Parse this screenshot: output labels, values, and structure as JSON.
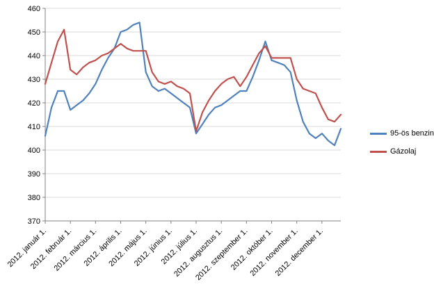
{
  "chart_data": {
    "type": "line",
    "title": "",
    "xlabel": "",
    "ylabel": "",
    "ylim": [
      370,
      460
    ],
    "ytick_step": 10,
    "grid": "horizontal",
    "legend_position": "right",
    "x_tick_labels": [
      "2012. január 1.",
      "2012. február 1.",
      "2012. március 1.",
      "2012. április 1.",
      "2012. május 1.",
      "2012. június 1.",
      "2012. július 1.",
      "2012. augusztus 1.",
      "2012. szeptember 1.",
      "2012. október 1.",
      "2012. november 1.",
      "2012. december 1."
    ],
    "points_per_month": 4,
    "series": [
      {
        "name": "95-ös benzin",
        "color": "#4F81BD",
        "values": [
          406,
          418,
          425,
          425,
          417,
          419,
          421,
          424,
          428,
          434,
          439,
          443,
          450,
          451,
          453,
          454,
          433,
          427,
          425,
          426,
          424,
          422,
          420,
          418,
          407,
          411,
          415,
          418,
          419,
          421,
          423,
          425,
          425,
          431,
          438,
          446,
          438,
          437,
          436,
          433,
          421,
          412,
          407,
          405,
          407,
          404,
          402,
          409
        ]
      },
      {
        "name": "Gázolaj",
        "color": "#C0504D",
        "values": [
          428,
          437,
          446,
          451,
          434,
          432,
          435,
          437,
          438,
          440,
          441,
          443,
          445,
          443,
          442,
          442,
          442,
          433,
          429,
          428,
          429,
          427,
          426,
          424,
          408,
          416,
          421,
          425,
          428,
          430,
          431,
          427,
          431,
          436,
          441,
          444,
          439,
          439,
          439,
          439,
          430,
          426,
          425,
          424,
          418,
          413,
          412,
          415
        ]
      }
    ],
    "axis_color": "#808080",
    "gridline_color": "#D9D9D9"
  }
}
